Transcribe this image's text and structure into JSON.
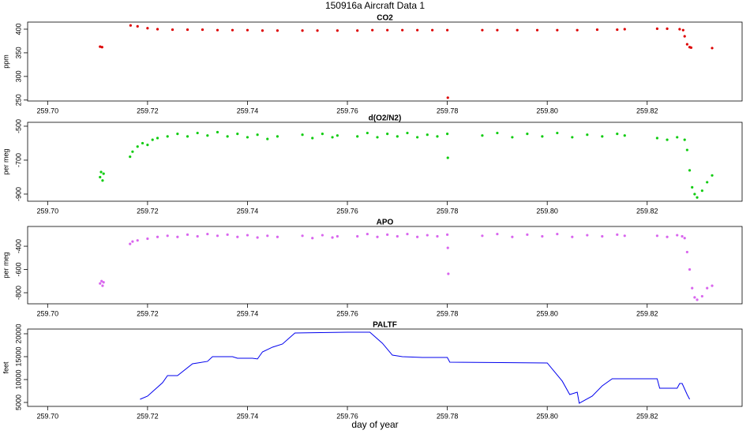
{
  "title": "150916a   Aircraft Data 1",
  "xlabel": "day of year",
  "chart_data": [
    {
      "type": "scatter",
      "title": "CO2",
      "ylabel": "ppm",
      "xlim": [
        259.696,
        259.839
      ],
      "ylim": [
        248,
        415
      ],
      "xticks": [
        {
          "value": 259.7,
          "label": "259.70"
        },
        259.72,
        259.74,
        259.76,
        259.78,
        {
          "value": 259.8,
          "label": "259.80"
        },
        259.82
      ],
      "yticks": [
        250,
        300,
        350,
        400
      ],
      "series": [
        {
          "color": "#dd0000",
          "x": [
            259.7105,
            259.7109,
            259.7166,
            259.718,
            259.72,
            259.722,
            259.725,
            259.728,
            259.731,
            259.734,
            259.737,
            259.74,
            259.743,
            259.746,
            259.751,
            259.754,
            259.758,
            259.762,
            259.765,
            259.768,
            259.771,
            259.774,
            259.777,
            259.78,
            259.7801,
            259.787,
            259.79,
            259.794,
            259.798,
            259.802,
            259.806,
            259.81,
            259.814,
            259.8155,
            259.822,
            259.824,
            259.8265,
            259.8272,
            259.8275,
            259.828,
            259.8285,
            259.8288,
            259.833
          ],
          "values": [
            363,
            362,
            408,
            406,
            402,
            400,
            399,
            399,
            399,
            398,
            398,
            398,
            397,
            397,
            397,
            397,
            397,
            397,
            398,
            398,
            398,
            398,
            398,
            398,
            255,
            398,
            398,
            398,
            398,
            398,
            398,
            399,
            399,
            400,
            401,
            401,
            400,
            398,
            385,
            368,
            362,
            361,
            360
          ]
        }
      ]
    },
    {
      "type": "scatter",
      "title": "d(O2/N2)",
      "ylabel": "per meg",
      "xlim": [
        259.696,
        259.839
      ],
      "ylim": [
        -942,
        -477
      ],
      "xticks": [
        {
          "value": 259.7,
          "label": "259.70"
        },
        259.72,
        259.74,
        259.76,
        259.78,
        {
          "value": 259.8,
          "label": "259.80"
        },
        259.82
      ],
      "yticks": [
        -500,
        -700,
        -900
      ],
      "series": [
        {
          "color": "#11cc11",
          "x": [
            259.7105,
            259.7107,
            259.711,
            259.7112,
            259.7165,
            259.717,
            259.718,
            259.719,
            259.72,
            259.721,
            259.722,
            259.724,
            259.726,
            259.728,
            259.73,
            259.732,
            259.734,
            259.736,
            259.738,
            259.74,
            259.742,
            259.744,
            259.746,
            259.751,
            259.753,
            259.755,
            259.757,
            259.758,
            259.762,
            259.764,
            259.766,
            259.768,
            259.77,
            259.772,
            259.774,
            259.776,
            259.778,
            259.78,
            259.7801,
            259.787,
            259.79,
            259.793,
            259.796,
            259.799,
            259.802,
            259.805,
            259.808,
            259.811,
            259.814,
            259.8155,
            259.822,
            259.824,
            259.826,
            259.8275,
            259.828,
            259.8285,
            259.829,
            259.8295,
            259.83,
            259.831,
            259.832,
            259.833
          ],
          "values": [
            -800,
            -770,
            -820,
            -780,
            -680,
            -650,
            -620,
            -600,
            -610,
            -580,
            -570,
            -560,
            -545,
            -560,
            -540,
            -555,
            -535,
            -560,
            -545,
            -565,
            -550,
            -575,
            -560,
            -550,
            -570,
            -545,
            -565,
            -555,
            -560,
            -540,
            -565,
            -545,
            -560,
            -540,
            -565,
            -550,
            -560,
            -545,
            -686,
            -555,
            -540,
            -565,
            -545,
            -560,
            -540,
            -565,
            -550,
            -560,
            -545,
            -555,
            -570,
            -580,
            -565,
            -580,
            -640,
            -760,
            -860,
            -900,
            -920,
            -880,
            -830,
            -790
          ]
        }
      ]
    },
    {
      "type": "scatter",
      "title": "APO",
      "ylabel": "per meg",
      "xlim": [
        259.696,
        259.839
      ],
      "ylim": [
        -895,
        -230
      ],
      "xticks": [
        {
          "value": 259.7,
          "label": "259.70"
        },
        259.72,
        259.74,
        259.76,
        259.78,
        {
          "value": 259.8,
          "label": "259.80"
        },
        259.82
      ],
      "yticks": [
        -400,
        -600,
        -800
      ],
      "series": [
        {
          "color": "#d966ee",
          "x": [
            259.7105,
            259.7108,
            259.711,
            259.7112,
            259.7165,
            259.717,
            259.718,
            259.72,
            259.722,
            259.724,
            259.726,
            259.728,
            259.73,
            259.732,
            259.734,
            259.736,
            259.738,
            259.74,
            259.742,
            259.744,
            259.746,
            259.751,
            259.753,
            259.755,
            259.757,
            259.758,
            259.762,
            259.764,
            259.766,
            259.768,
            259.77,
            259.772,
            259.774,
            259.776,
            259.778,
            259.78,
            259.7801,
            259.7802,
            259.787,
            259.79,
            259.793,
            259.796,
            259.799,
            259.802,
            259.805,
            259.808,
            259.811,
            259.814,
            259.8155,
            259.822,
            259.824,
            259.826,
            259.827,
            259.8275,
            259.828,
            259.8285,
            259.829,
            259.8295,
            259.83,
            259.831,
            259.832,
            259.833
          ],
          "values": [
            -720,
            -700,
            -740,
            -710,
            -380,
            -360,
            -350,
            -335,
            -320,
            -310,
            -320,
            -300,
            -315,
            -295,
            -310,
            -300,
            -320,
            -305,
            -325,
            -310,
            -320,
            -310,
            -330,
            -305,
            -325,
            -315,
            -315,
            -295,
            -320,
            -300,
            -315,
            -295,
            -320,
            -305,
            -315,
            -300,
            -414,
            -637,
            -310,
            -295,
            -320,
            -300,
            -315,
            -295,
            -320,
            -305,
            -315,
            -300,
            -310,
            -310,
            -320,
            -305,
            -315,
            -330,
            -450,
            -600,
            -760,
            -840,
            -860,
            -830,
            -760,
            -740
          ]
        }
      ]
    },
    {
      "type": "line",
      "title": "PALTF",
      "ylabel": "feet",
      "xlim": [
        259.696,
        259.839
      ],
      "ylim": [
        4140,
        21030
      ],
      "xticks": [
        {
          "value": 259.7,
          "label": "259.70"
        },
        259.72,
        259.74,
        259.76,
        259.78,
        {
          "value": 259.8,
          "label": "259.80"
        },
        259.82
      ],
      "yticks": [
        5000,
        10000,
        15000,
        20000
      ],
      "series": [
        {
          "color": "#0000ee",
          "x": [
            259.7185,
            259.72,
            259.723,
            259.724,
            259.726,
            259.729,
            259.732,
            259.733,
            259.737,
            259.738,
            259.741,
            259.742,
            259.743,
            259.745,
            259.747,
            259.7495,
            259.76,
            259.7645,
            259.767,
            259.769,
            259.771,
            259.775,
            259.78,
            259.7805,
            259.8,
            259.803,
            259.8045,
            259.806,
            259.8064,
            259.809,
            259.811,
            259.813,
            259.822,
            259.8225,
            259.826,
            259.8265,
            259.827,
            259.828,
            259.8285
          ],
          "values": [
            5690,
            6380,
            9310,
            10860,
            10860,
            13450,
            13970,
            15000,
            15000,
            14660,
            14660,
            14500,
            16030,
            17070,
            17760,
            20170,
            20340,
            20340,
            17930,
            15340,
            15000,
            14830,
            14830,
            13800,
            13620,
            9660,
            6730,
            7240,
            4830,
            6380,
            8620,
            10170,
            10170,
            8100,
            8100,
            9140,
            9140,
            6730,
            5690
          ]
        }
      ]
    }
  ]
}
